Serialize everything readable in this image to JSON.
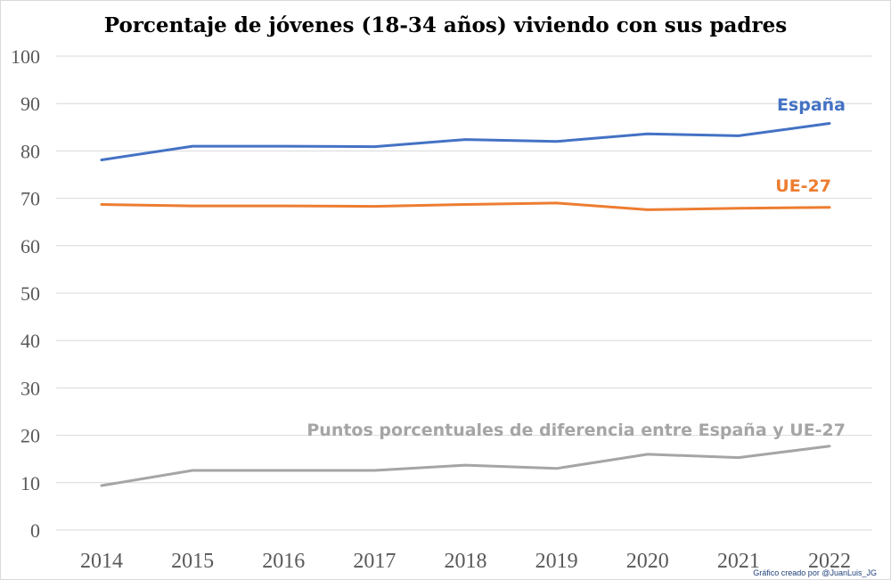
{
  "chart_data": {
    "type": "line",
    "title": "Porcentaje de jóvenes (18-34 años) viviendo con sus padres",
    "categories": [
      "2014",
      "2015",
      "2016",
      "2017",
      "2018",
      "2019",
      "2020",
      "2021",
      "2022"
    ],
    "ylim": [
      0,
      100
    ],
    "yticks": [
      0,
      10,
      20,
      30,
      40,
      50,
      60,
      70,
      80,
      90,
      100
    ],
    "grid": true,
    "series": [
      {
        "name": "España",
        "label": "España",
        "color": "#4472c4",
        "values": [
          78.1,
          81.0,
          81.0,
          80.9,
          82.4,
          82.0,
          83.6,
          83.2,
          85.8
        ]
      },
      {
        "name": "UE-27",
        "label": "UE-27",
        "color": "#ed7d31",
        "values": [
          68.7,
          68.4,
          68.4,
          68.3,
          68.7,
          69.0,
          67.6,
          67.9,
          68.1
        ]
      },
      {
        "name": "Diferencia",
        "label": "Puntos porcentuales de diferencia entre España y UE-27",
        "color": "#a5a5a5",
        "values": [
          9.4,
          12.6,
          12.6,
          12.6,
          13.7,
          13.0,
          16.0,
          15.3,
          17.7
        ]
      }
    ]
  },
  "credit": "Gráfico creado por @JuanLuis_JG"
}
